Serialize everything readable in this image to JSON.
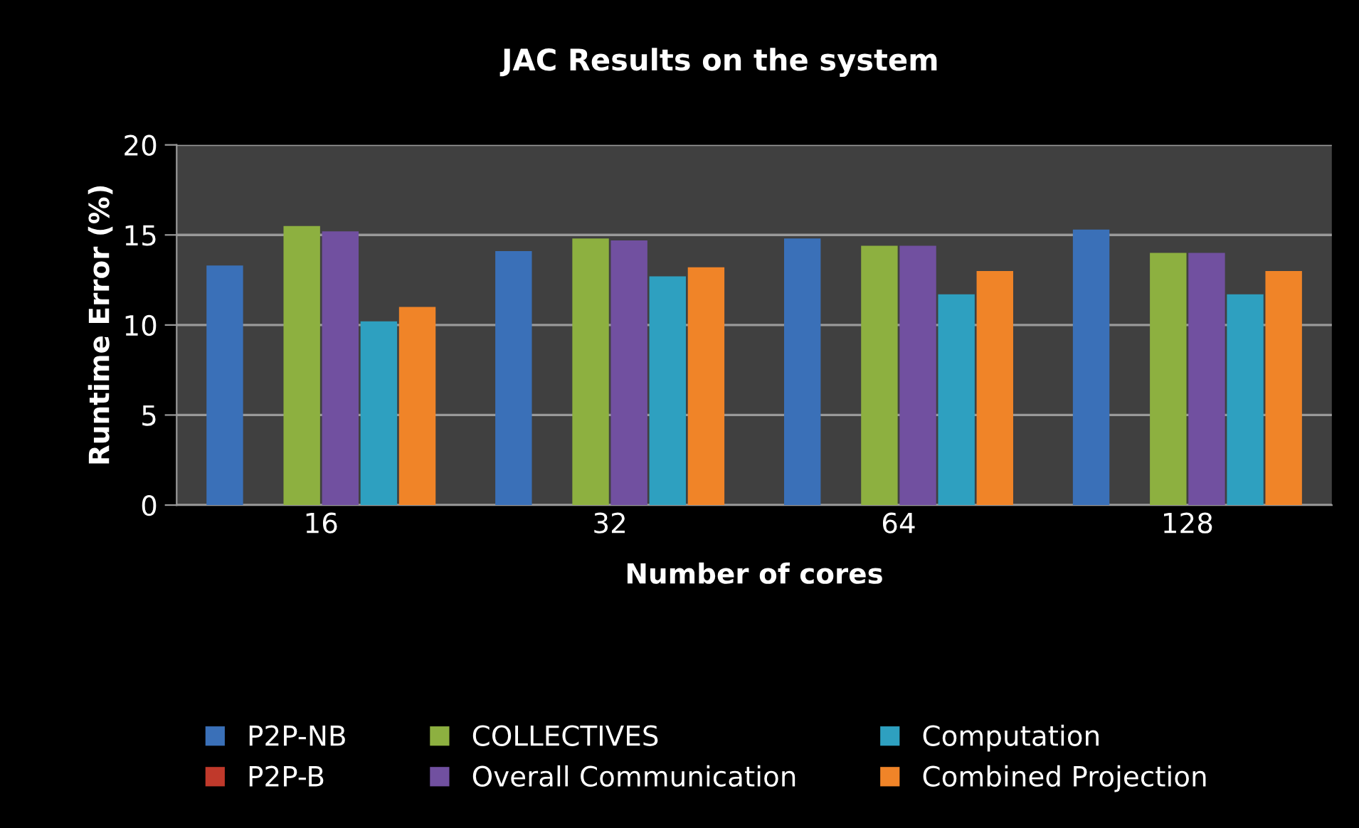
{
  "chart_data": {
    "type": "bar",
    "title": "JAC Results on the system",
    "xlabel": "Number of cores",
    "ylabel": "Runtime Error (%)",
    "categories": [
      "16",
      "32",
      "64",
      "128"
    ],
    "series": [
      {
        "name": "P2P-NB",
        "color": "#3a70b8",
        "values": [
          13.3,
          14.1,
          14.8,
          15.3
        ]
      },
      {
        "name": "P2P-B",
        "color": "#c0392b",
        "values": [
          null,
          null,
          null,
          null
        ]
      },
      {
        "name": "COLLECTIVES",
        "color": "#8db040",
        "values": [
          15.5,
          14.8,
          14.4,
          14.0
        ]
      },
      {
        "name": "Overall Communication",
        "color": "#7150a0",
        "values": [
          15.2,
          14.7,
          14.4,
          14.0
        ]
      },
      {
        "name": "Computation",
        "color": "#2ea0c0",
        "values": [
          10.2,
          12.7,
          11.7,
          11.7
        ]
      },
      {
        "name": "Combined Projection",
        "color": "#f08428",
        "values": [
          11.0,
          13.2,
          13.0,
          13.0
        ]
      }
    ],
    "ylim": [
      0,
      20
    ],
    "yticks": [
      0,
      5,
      10,
      15,
      20
    ],
    "grid": "y",
    "legend": "bottom"
  }
}
